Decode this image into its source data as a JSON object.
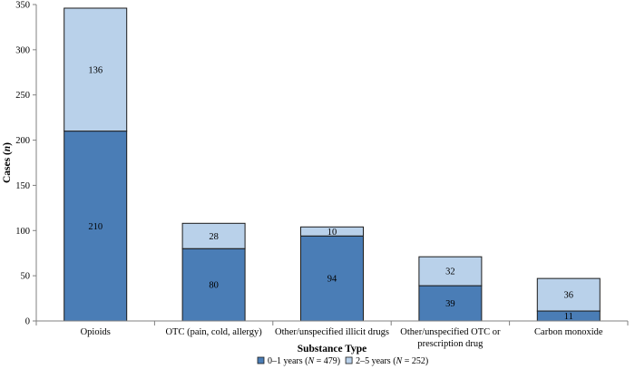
{
  "chart_data": {
    "type": "bar",
    "stacked": true,
    "categories": [
      [
        "Opioids"
      ],
      [
        "OTC (pain, cold, allergy)"
      ],
      [
        "Other/unspecified illicit drugs"
      ],
      [
        "Other/unspecified OTC or",
        "prescription drug"
      ],
      [
        "Carbon monoxide"
      ]
    ],
    "series": [
      {
        "name": "0–1 years (",
        "name_italic": "N",
        "name_suffix": " = 479)",
        "values": [
          210,
          80,
          94,
          39,
          11
        ],
        "color": "#4a7db6"
      },
      {
        "name": "2–5 years (",
        "name_italic": "N",
        "name_suffix": " = 252)",
        "values": [
          136,
          28,
          10,
          32,
          36
        ],
        "color": "#b9d1ea"
      }
    ],
    "ylim": [
      0,
      350
    ],
    "yticks": [
      0,
      50,
      100,
      150,
      200,
      250,
      300,
      350
    ],
    "xlabel": "Substance Type",
    "ylabel": "Cases (",
    "ylabel_italic": "n",
    "ylabel_suffix": ")",
    "legend_position": "bottom",
    "grid": false,
    "colors": {
      "edge": "#1c1c1c",
      "axis": "#808080"
    }
  }
}
